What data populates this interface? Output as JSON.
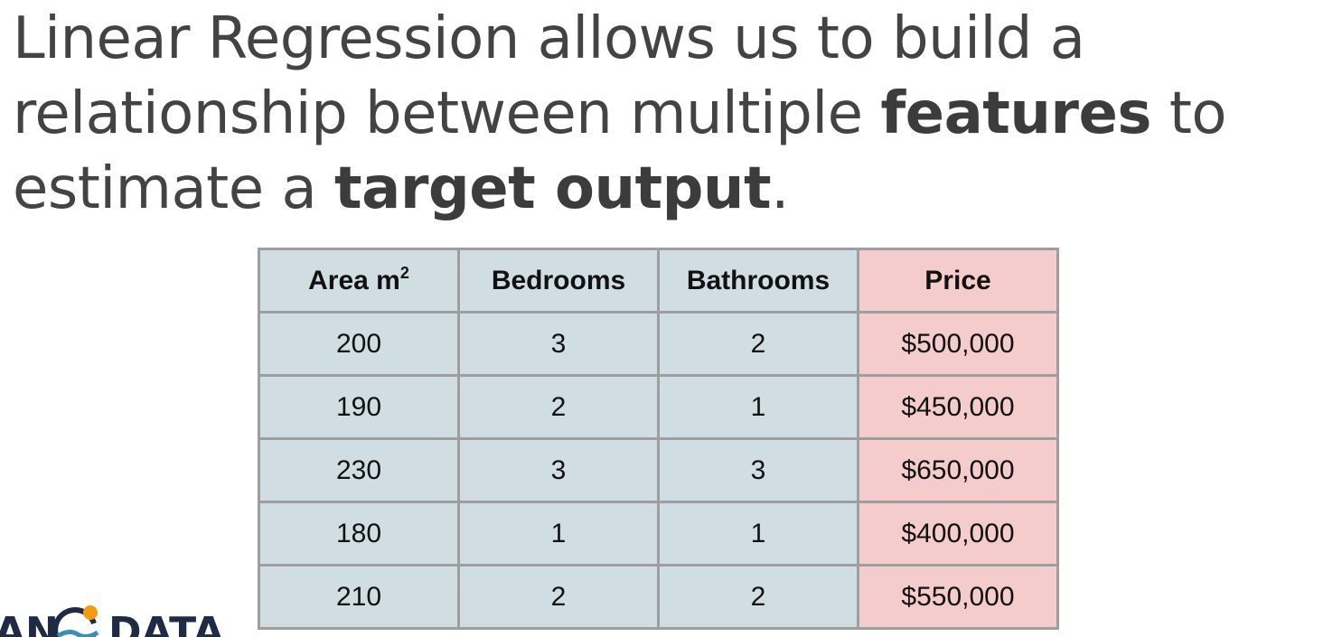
{
  "heading": {
    "line1": "Linear Regression allows us to build a",
    "line2_pre": "relationship between multiple ",
    "line2_bold": "features",
    "line2_post": " to",
    "line3_pre": "estimate a ",
    "line3_bold": "target output",
    "line3_post": "."
  },
  "table": {
    "headers": {
      "area": "Area m",
      "area_sup": "2",
      "bedrooms": "Bedrooms",
      "bathrooms": "Bathrooms",
      "price": "Price"
    },
    "rows": [
      {
        "area": "200",
        "bedrooms": "3",
        "bathrooms": "2",
        "price": "$500,000"
      },
      {
        "area": "190",
        "bedrooms": "2",
        "bathrooms": "1",
        "price": "$450,000"
      },
      {
        "area": "230",
        "bedrooms": "3",
        "bathrooms": "3",
        "price": "$650,000"
      },
      {
        "area": "180",
        "bedrooms": "1",
        "bathrooms": "1",
        "price": "$400,000"
      },
      {
        "area": "210",
        "bedrooms": "2",
        "bathrooms": "2",
        "price": "$550,000"
      }
    ]
  },
  "logo": {
    "part1": "AN",
    "part2": "DATA"
  },
  "colors": {
    "feature_bg": "#d0dde2",
    "target_bg": "#f4cccc",
    "border": "#9e9e9e",
    "heading_text": "#434343",
    "logo_text": "#1f2a44",
    "logo_dot": "#f39c12"
  }
}
